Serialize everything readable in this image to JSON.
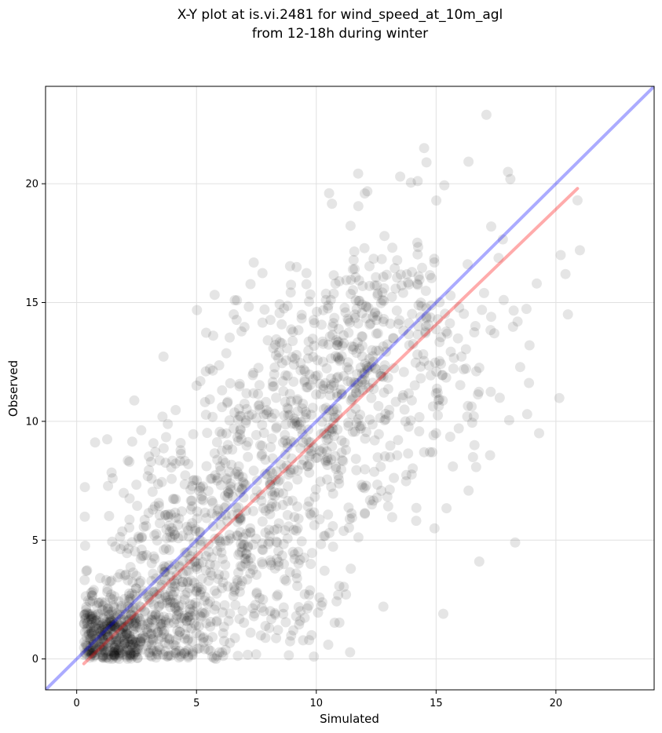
{
  "chart_data": {
    "type": "scatter",
    "title_lines": [
      "X-Y plot at is.vi.2481 for wind_speed_at_10m_agl",
      "from 12-18h during winter"
    ],
    "xlabel": "Simulated",
    "ylabel": "Observed",
    "xlim": [
      -1.3,
      24.1
    ],
    "ylim": [
      -1.3,
      24.1
    ],
    "xticks": [
      0,
      5,
      10,
      15,
      20
    ],
    "yticks": [
      0,
      5,
      10,
      15,
      20
    ],
    "grid": true,
    "points_color": "#000000",
    "points_alpha": 0.1,
    "reference_line": {
      "color": "#0000ff",
      "from": [
        -1.3,
        -1.3
      ],
      "to": [
        24.1,
        24.1
      ]
    },
    "regression_line": {
      "color": "#ff0000",
      "from": [
        0.3,
        -0.2
      ],
      "to": [
        20.9,
        19.8
      ]
    },
    "annotated_points": [
      [
        17.1,
        22.9
      ],
      [
        14.5,
        21.5
      ],
      [
        14.6,
        20.9
      ],
      [
        18.0,
        20.5
      ],
      [
        18.1,
        20.2
      ],
      [
        13.5,
        20.3
      ],
      [
        20.9,
        19.3
      ],
      [
        21.0,
        17.2
      ],
      [
        20.2,
        17.0
      ],
      [
        20.4,
        16.2
      ],
      [
        19.2,
        15.8
      ],
      [
        20.5,
        14.5
      ],
      [
        17.3,
        18.2
      ],
      [
        17.3,
        14.4
      ],
      [
        18.4,
        14.2
      ],
      [
        18.9,
        13.2
      ],
      [
        17.0,
        15.4
      ],
      [
        18.8,
        10.3
      ],
      [
        19.3,
        9.5
      ],
      [
        18.3,
        4.9
      ],
      [
        16.8,
        4.1
      ],
      [
        15.3,
        1.9
      ],
      [
        12.8,
        2.2
      ],
      [
        10.5,
        0.6
      ],
      [
        9.8,
        1.0
      ],
      [
        6.6,
        15.1
      ],
      [
        2.2,
        8.3
      ],
      [
        3.1,
        8.3
      ],
      [
        1.5,
        7.6
      ],
      [
        0.4,
        3.7
      ],
      [
        16.3,
        10.2
      ],
      [
        15.7,
        8.1
      ],
      [
        16.6,
        9.0
      ],
      [
        15.0,
        9.5
      ],
      [
        14.5,
        8.7
      ]
    ],
    "cloud_clusters": [
      {
        "cx": 1.4,
        "cy": 1.1,
        "sx": 0.8,
        "sy": 0.8,
        "n": 340
      },
      {
        "cx": 3.6,
        "cy": 1.9,
        "sx": 1.3,
        "sy": 1.4,
        "n": 260
      },
      {
        "cx": 4.6,
        "cy": 4.8,
        "sx": 1.8,
        "sy": 2.4,
        "n": 280
      },
      {
        "cx": 7.4,
        "cy": 7.3,
        "sx": 1.8,
        "sy": 2.9,
        "n": 260
      },
      {
        "cx": 10.1,
        "cy": 10.4,
        "sx": 1.7,
        "sy": 2.8,
        "n": 280
      },
      {
        "cx": 12.4,
        "cy": 13.1,
        "sx": 1.6,
        "sy": 2.7,
        "n": 220
      },
      {
        "cx": 14.8,
        "cy": 12.2,
        "sx": 1.8,
        "sy": 3.0,
        "n": 110
      },
      {
        "cx": 8.6,
        "cy": 3.2,
        "sx": 1.5,
        "sy": 1.6,
        "n": 60
      }
    ]
  }
}
